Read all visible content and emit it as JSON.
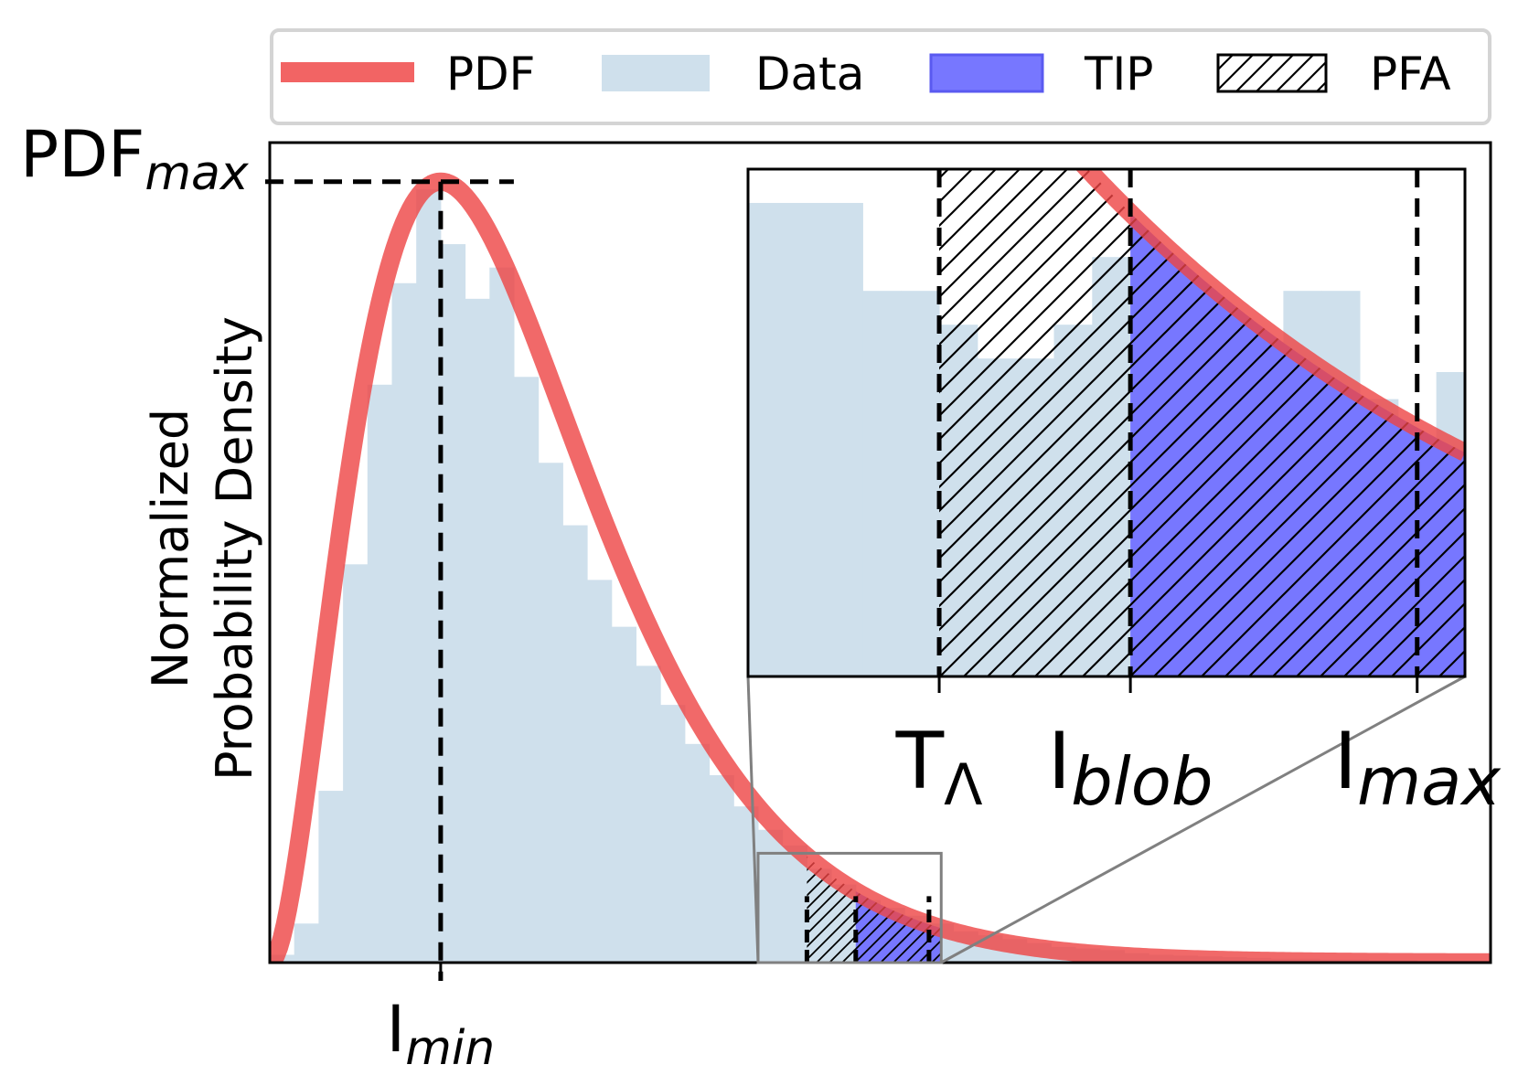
{
  "chart_data": {
    "type": "area",
    "title": "",
    "ylabel": [
      "Normalized",
      "Probability Density"
    ],
    "xlabel": "",
    "xlim": [
      0,
      100
    ],
    "ylim": [
      0,
      1.05
    ],
    "grid": false,
    "legend_position": "top",
    "legend": [
      {
        "label": "PDF",
        "swatch": "line",
        "color": "#f26464"
      },
      {
        "label": "Data",
        "swatch": "fill",
        "color": "#cfe0ec"
      },
      {
        "label": "TIP",
        "swatch": "fill",
        "color": "#7777ff"
      },
      {
        "label": "PFA",
        "swatch": "hatch",
        "color": "#000000"
      }
    ],
    "pdf": {
      "name": "PDF",
      "color": "#f26464",
      "shape": "gamma",
      "k": 3,
      "theta": 7,
      "offset": 0,
      "mode_x": 14
    },
    "histogram": {
      "name": "Data",
      "color": "#cfe0ec",
      "x": [
        0,
        2,
        4,
        6,
        8,
        10,
        12,
        14,
        16,
        18,
        20,
        22,
        24,
        26,
        28,
        30,
        32,
        34,
        36,
        38,
        40,
        42,
        44,
        46,
        48,
        50,
        52,
        54,
        56,
        58,
        60,
        62,
        64,
        66,
        68,
        70,
        72,
        74,
        76,
        78,
        80,
        82,
        84,
        86,
        88,
        90,
        92,
        94,
        96,
        98
      ],
      "values": [
        0.01,
        0.05,
        0.22,
        0.51,
        0.74,
        0.87,
        0.99,
        0.92,
        0.85,
        0.89,
        0.75,
        0.64,
        0.56,
        0.49,
        0.43,
        0.38,
        0.33,
        0.28,
        0.24,
        0.2,
        0.17,
        0.15,
        0.12,
        0.1,
        0.08,
        0.07,
        0.06,
        0.05,
        0.04,
        0.035,
        0.03,
        0.025,
        0.02,
        0.018,
        0.016,
        0.012,
        0.01,
        0.009,
        0.008,
        0.007,
        0.006,
        0.005,
        0.005,
        0.004,
        0.004,
        0.003,
        0.003,
        0.002,
        0.002,
        0.002
      ]
    },
    "markers": {
      "I_min": 14,
      "PDF_max": 1.0,
      "T_lambda": 44,
      "I_blob": 48,
      "I_max": 54
    },
    "regions": {
      "PFA": {
        "from": 44,
        "to": 55,
        "style": "hatch"
      },
      "TIP": {
        "from": 48,
        "to": 55,
        "style": "fill",
        "color": "#7777ff"
      }
    },
    "zoom_inset": {
      "x_range": [
        40,
        55
      ],
      "y_range": [
        0,
        0.075
      ],
      "histogram_values": [
        0.07,
        0.07,
        0.07,
        0.057,
        0.057,
        0.052,
        0.047,
        0.047,
        0.052,
        0.062,
        0.052,
        0.043,
        0.037,
        0.037,
        0.057,
        0.057,
        0.041,
        0.033,
        0.045
      ],
      "histogram_x": [
        40,
        40.8,
        41.6,
        42.4,
        43.2,
        44,
        44.8,
        45.6,
        46.4,
        47.2,
        48,
        48.8,
        49.6,
        50.4,
        51.2,
        52,
        52.8,
        53.6,
        54.4
      ]
    },
    "labels": {
      "pdf_max": "PDF",
      "pdf_max_sub": "max",
      "i_min": "I",
      "i_min_sub": "min",
      "t_lambda": "T",
      "t_lambda_sub": "Λ",
      "i_blob": "I",
      "i_blob_sub": "blob",
      "i_max": "I",
      "i_max_sub": "max"
    }
  }
}
